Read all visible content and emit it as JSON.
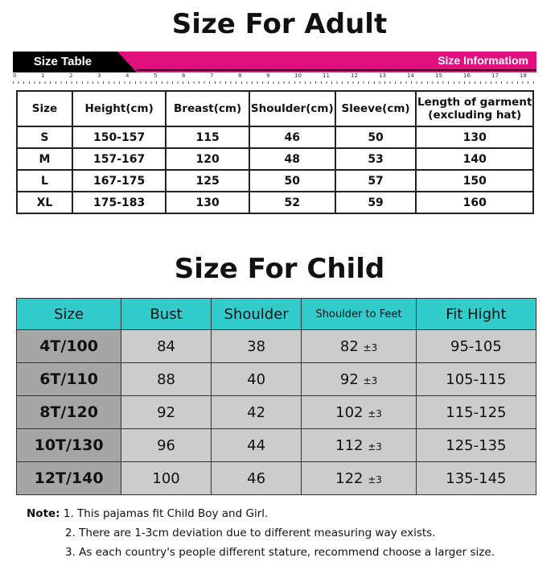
{
  "adult": {
    "title": "Size For Adult",
    "size_table_label": "Size Table",
    "banner": "Size Informatiom",
    "ruler_marks": [
      "0",
      "1",
      "2",
      "3",
      "4",
      "5",
      "6",
      "7",
      "8",
      "9",
      "10",
      "11",
      "12",
      "13",
      "14",
      "15",
      "16",
      "17",
      "18"
    ],
    "headers": [
      "Size",
      "Height(cm)",
      "Breast(cm)",
      "Shoulder(cm)",
      "Sleeve(cm)",
      "Length of garment\n(excluding hat)"
    ],
    "rows": [
      [
        "S",
        "150-157",
        "115",
        "46",
        "50",
        "130"
      ],
      [
        "M",
        "157-167",
        "120",
        "48",
        "53",
        "140"
      ],
      [
        "L",
        "167-175",
        "125",
        "50",
        "57",
        "150"
      ],
      [
        "XL",
        "175-183",
        "130",
        "52",
        "59",
        "160"
      ]
    ]
  },
  "child": {
    "title": "Size For Child",
    "headers": [
      "Size",
      "Bust",
      "Shoulder",
      "Shoulder to Feet",
      "Fit Hight"
    ],
    "rows": [
      [
        "4T/100",
        "84",
        "38",
        "82",
        "95-105"
      ],
      [
        "6T/110",
        "88",
        "40",
        "92",
        "105-115"
      ],
      [
        "8T/120",
        "92",
        "42",
        "102",
        "115-125"
      ],
      [
        "10T/130",
        "96",
        "44",
        "112",
        "125-135"
      ],
      [
        "12T/140",
        "100",
        "46",
        "122",
        "135-145"
      ]
    ],
    "tolerance": "±3",
    "header_color": "#33cccc"
  },
  "notes": {
    "label": "Note:",
    "items": [
      "1. This pajamas fit Child Boy and Girl.",
      "2. There are 1-3cm deviation due to different measuring way exists.",
      "3. As each country's people different stature, recommend choose a larger size."
    ]
  }
}
